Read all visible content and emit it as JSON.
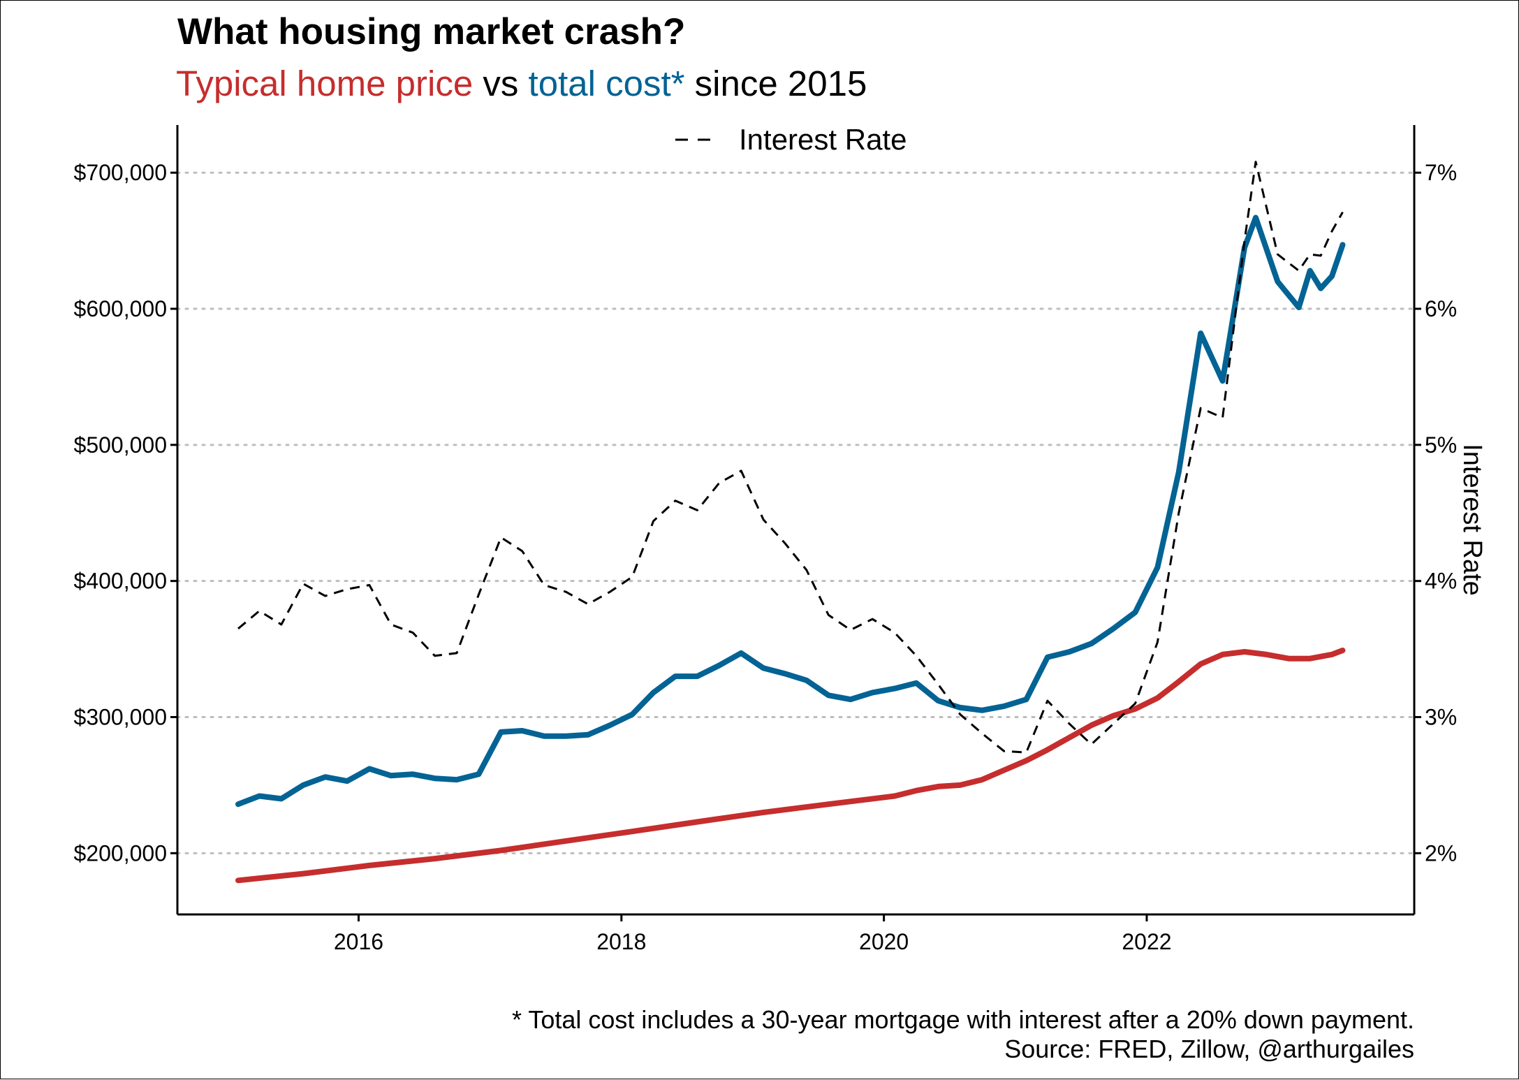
{
  "colors": {
    "price": "#c62d2d",
    "cost": "#036394",
    "rate": "#000000",
    "grid": "#bdbdbd",
    "text": "#000000"
  },
  "title": "What housing market crash?",
  "subtitle": {
    "price_label": "Typical home price",
    "vs": " vs ",
    "cost_label": "total cost*",
    "tail": " since 2015"
  },
  "legend": {
    "label": "Interest Rate",
    "placement": "top-center"
  },
  "caption": {
    "line1": "* Total cost includes a 30-year mortgage with interest after a 20% down payment.",
    "line2": "Source: FRED, Zillow, @arthurgailes"
  },
  "chart_data": {
    "type": "line",
    "y_axis": {
      "ylim": [
        155000,
        735000
      ],
      "ticks": [
        200000,
        300000,
        400000,
        500000,
        600000,
        700000
      ],
      "tick_labels": [
        "$200,000",
        "$300,000",
        "$400,000",
        "$500,000",
        "$600,000",
        "$700,000"
      ],
      "ylabel": ""
    },
    "y2_axis": {
      "ylim": [
        1.55,
        7.35
      ],
      "ticks": [
        2,
        3,
        4,
        5,
        6,
        7
      ],
      "tick_labels": [
        "2%",
        "3%",
        "4%",
        "5%",
        "6%",
        "7%"
      ],
      "ylabel": "Interest Rate"
    },
    "x_axis": {
      "xlim": [
        "2014-08-15",
        "2024-01-15"
      ],
      "ticks": [
        "2016-01-01",
        "2018-01-01",
        "2020-01-01",
        "2022-01-01"
      ],
      "tick_labels": [
        "2016",
        "2018",
        "2020",
        "2022"
      ],
      "xlabel": ""
    },
    "grid": "horizontal-dotted",
    "series": [
      {
        "name": "Typical home price",
        "axis": "left",
        "style": "solid",
        "points": [
          [
            "2015-01-31",
            180000
          ],
          [
            "2015-07-31",
            185000
          ],
          [
            "2016-01-31",
            191000
          ],
          [
            "2016-07-31",
            196000
          ],
          [
            "2017-01-31",
            202000
          ],
          [
            "2017-07-31",
            209000
          ],
          [
            "2018-01-31",
            216000
          ],
          [
            "2018-07-31",
            223000
          ],
          [
            "2019-01-31",
            230000
          ],
          [
            "2019-07-31",
            236000
          ],
          [
            "2020-01-31",
            242000
          ],
          [
            "2020-03-31",
            246000
          ],
          [
            "2020-05-31",
            249000
          ],
          [
            "2020-07-31",
            250000
          ],
          [
            "2020-09-30",
            254000
          ],
          [
            "2020-11-30",
            261000
          ],
          [
            "2021-01-31",
            268000
          ],
          [
            "2021-03-31",
            276000
          ],
          [
            "2021-05-31",
            285000
          ],
          [
            "2021-07-31",
            294000
          ],
          [
            "2021-09-30",
            301000
          ],
          [
            "2021-11-30",
            306000
          ],
          [
            "2022-01-31",
            314000
          ],
          [
            "2022-03-31",
            326000
          ],
          [
            "2022-05-31",
            339000
          ],
          [
            "2022-07-31",
            346000
          ],
          [
            "2022-09-30",
            348000
          ],
          [
            "2022-11-30",
            346000
          ],
          [
            "2023-01-31",
            343000
          ],
          [
            "2023-03-31",
            343000
          ],
          [
            "2023-05-31",
            346000
          ],
          [
            "2023-06-30",
            349000
          ]
        ]
      },
      {
        "name": "total cost*",
        "axis": "left",
        "style": "solid",
        "points": [
          [
            "2015-01-31",
            236000
          ],
          [
            "2015-03-31",
            242000
          ],
          [
            "2015-05-31",
            240000
          ],
          [
            "2015-07-31",
            250000
          ],
          [
            "2015-09-30",
            256000
          ],
          [
            "2015-11-30",
            253000
          ],
          [
            "2016-01-31",
            262000
          ],
          [
            "2016-03-31",
            257000
          ],
          [
            "2016-05-31",
            258000
          ],
          [
            "2016-07-31",
            255000
          ],
          [
            "2016-09-30",
            254000
          ],
          [
            "2016-11-30",
            258000
          ],
          [
            "2017-01-31",
            289000
          ],
          [
            "2017-03-31",
            290000
          ],
          [
            "2017-05-31",
            286000
          ],
          [
            "2017-07-31",
            286000
          ],
          [
            "2017-09-30",
            287000
          ],
          [
            "2017-11-30",
            294000
          ],
          [
            "2018-01-31",
            302000
          ],
          [
            "2018-03-31",
            318000
          ],
          [
            "2018-05-31",
            330000
          ],
          [
            "2018-07-31",
            330000
          ],
          [
            "2018-09-30",
            338000
          ],
          [
            "2018-11-30",
            347000
          ],
          [
            "2019-01-31",
            336000
          ],
          [
            "2019-03-31",
            332000
          ],
          [
            "2019-05-31",
            327000
          ],
          [
            "2019-07-31",
            316000
          ],
          [
            "2019-09-30",
            313000
          ],
          [
            "2019-11-30",
            318000
          ],
          [
            "2020-01-31",
            321000
          ],
          [
            "2020-03-31",
            325000
          ],
          [
            "2020-05-31",
            312000
          ],
          [
            "2020-07-31",
            307000
          ],
          [
            "2020-09-30",
            305000
          ],
          [
            "2020-11-30",
            308000
          ],
          [
            "2021-01-31",
            313000
          ],
          [
            "2021-03-31",
            344000
          ],
          [
            "2021-05-31",
            348000
          ],
          [
            "2021-07-31",
            354000
          ],
          [
            "2021-09-30",
            365000
          ],
          [
            "2021-11-30",
            377000
          ],
          [
            "2022-01-31",
            410000
          ],
          [
            "2022-03-31",
            480000
          ],
          [
            "2022-05-31",
            582000
          ],
          [
            "2022-07-31",
            547000
          ],
          [
            "2022-09-30",
            645000
          ],
          [
            "2022-10-31",
            667000
          ],
          [
            "2022-12-31",
            620000
          ],
          [
            "2023-02-28",
            601000
          ],
          [
            "2023-03-31",
            628000
          ],
          [
            "2023-04-30",
            615000
          ],
          [
            "2023-05-31",
            624000
          ],
          [
            "2023-06-30",
            647000
          ]
        ]
      },
      {
        "name": "Interest Rate",
        "axis": "right",
        "style": "dashed",
        "points": [
          [
            "2015-01-31",
            3.65
          ],
          [
            "2015-03-31",
            3.78
          ],
          [
            "2015-05-31",
            3.68
          ],
          [
            "2015-07-31",
            3.98
          ],
          [
            "2015-09-30",
            3.89
          ],
          [
            "2015-11-30",
            3.94
          ],
          [
            "2016-01-31",
            3.97
          ],
          [
            "2016-03-31",
            3.68
          ],
          [
            "2016-05-31",
            3.62
          ],
          [
            "2016-07-31",
            3.45
          ],
          [
            "2016-09-30",
            3.47
          ],
          [
            "2016-11-30",
            3.9
          ],
          [
            "2017-01-31",
            4.32
          ],
          [
            "2017-03-31",
            4.22
          ],
          [
            "2017-05-31",
            3.97
          ],
          [
            "2017-07-31",
            3.92
          ],
          [
            "2017-09-30",
            3.83
          ],
          [
            "2017-11-30",
            3.92
          ],
          [
            "2018-01-31",
            4.03
          ],
          [
            "2018-03-31",
            4.44
          ],
          [
            "2018-05-31",
            4.59
          ],
          [
            "2018-07-31",
            4.52
          ],
          [
            "2018-09-30",
            4.72
          ],
          [
            "2018-11-30",
            4.81
          ],
          [
            "2019-01-31",
            4.45
          ],
          [
            "2019-03-31",
            4.28
          ],
          [
            "2019-05-31",
            4.08
          ],
          [
            "2019-07-31",
            3.75
          ],
          [
            "2019-09-30",
            3.64
          ],
          [
            "2019-11-30",
            3.72
          ],
          [
            "2020-01-31",
            3.62
          ],
          [
            "2020-03-31",
            3.45
          ],
          [
            "2020-05-31",
            3.24
          ],
          [
            "2020-07-31",
            3.02
          ],
          [
            "2020-09-30",
            2.88
          ],
          [
            "2020-11-30",
            2.75
          ],
          [
            "2021-01-31",
            2.74
          ],
          [
            "2021-03-31",
            3.12
          ],
          [
            "2021-05-31",
            2.95
          ],
          [
            "2021-07-31",
            2.8
          ],
          [
            "2021-09-30",
            2.95
          ],
          [
            "2021-11-30",
            3.1
          ],
          [
            "2022-01-31",
            3.55
          ],
          [
            "2022-03-31",
            4.5
          ],
          [
            "2022-05-31",
            5.27
          ],
          [
            "2022-07-31",
            5.2
          ],
          [
            "2022-09-30",
            6.5
          ],
          [
            "2022-10-31",
            7.08
          ],
          [
            "2022-12-31",
            6.4
          ],
          [
            "2023-02-28",
            6.28
          ],
          [
            "2023-03-31",
            6.4
          ],
          [
            "2023-04-30",
            6.39
          ],
          [
            "2023-05-31",
            6.57
          ],
          [
            "2023-06-30",
            6.71
          ]
        ]
      }
    ]
  }
}
